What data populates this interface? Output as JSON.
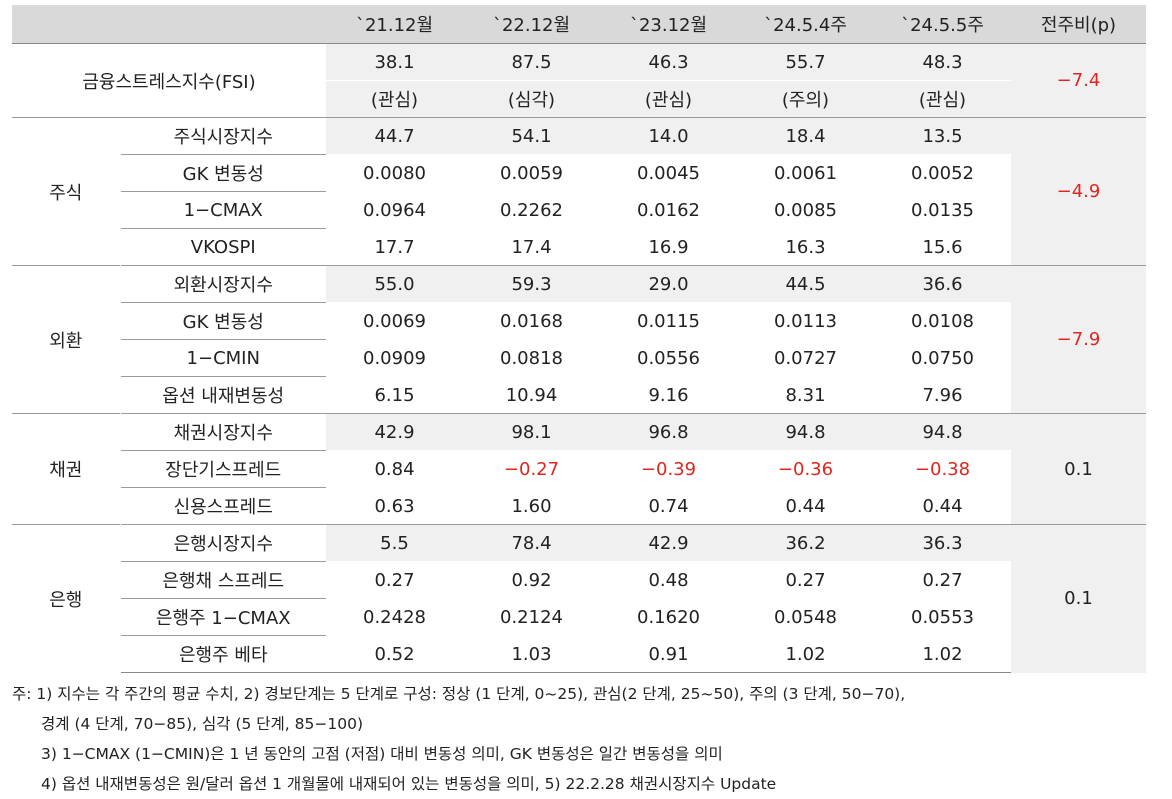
{
  "headers": [
    "",
    "",
    "`21.12월",
    "`22.12월",
    "`23.12월",
    "`24.5.4주",
    "`24.5.5주",
    "전주비(p)"
  ],
  "fsi": {
    "label": "금융스트레스지수(FSI)",
    "values": [
      "38.1",
      "87.5",
      "46.3",
      "55.7",
      "48.3"
    ],
    "levels": [
      "(관심)",
      "(심각)",
      "(관심)",
      "(주의)",
      "(관심)"
    ],
    "change": "−7.4"
  },
  "groups": [
    {
      "name": "주식",
      "change": "−4.9",
      "rows": [
        {
          "label": "주식시장지수",
          "values": [
            "44.7",
            "54.1",
            "14.0",
            "18.4",
            "13.5"
          ]
        },
        {
          "label": "GK 변동성",
          "values": [
            "0.0080",
            "0.0059",
            "0.0045",
            "0.0061",
            "0.0052"
          ]
        },
        {
          "label": "1−CMAX",
          "values": [
            "0.0964",
            "0.2262",
            "0.0162",
            "0.0085",
            "0.0135"
          ]
        },
        {
          "label": "VKOSPI",
          "values": [
            "17.7",
            "17.4",
            "16.9",
            "16.3",
            "15.6"
          ]
        }
      ]
    },
    {
      "name": "외환",
      "change": "−7.9",
      "rows": [
        {
          "label": "외환시장지수",
          "values": [
            "55.0",
            "59.3",
            "29.0",
            "44.5",
            "36.6"
          ]
        },
        {
          "label": "GK 변동성",
          "values": [
            "0.0069",
            "0.0168",
            "0.0115",
            "0.0113",
            "0.0108"
          ]
        },
        {
          "label": "1−CMIN",
          "values": [
            "0.0909",
            "0.0818",
            "0.0556",
            "0.0727",
            "0.0750"
          ]
        },
        {
          "label": "옵션 내재변동성",
          "values": [
            "6.15",
            "10.94",
            "9.16",
            "8.31",
            "7.96"
          ]
        }
      ]
    },
    {
      "name": "채권",
      "change": "0.1",
      "rows": [
        {
          "label": "채권시장지수",
          "values": [
            "42.9",
            "98.1",
            "96.8",
            "94.8",
            "94.8"
          ]
        },
        {
          "label": "장단기스프레드",
          "values": [
            "0.84",
            "−0.27",
            "−0.39",
            "−0.36",
            "−0.38"
          ]
        },
        {
          "label": "신용스프레드",
          "values": [
            "0.63",
            "1.60",
            "0.74",
            "0.44",
            "0.44"
          ]
        }
      ]
    },
    {
      "name": "은행",
      "change": "0.1",
      "rows": [
        {
          "label": "은행시장지수",
          "values": [
            "5.5",
            "78.4",
            "42.9",
            "36.2",
            "36.3"
          ]
        },
        {
          "label": "은행채 스프레드",
          "values": [
            "0.27",
            "0.92",
            "0.48",
            "0.27",
            "0.27"
          ]
        },
        {
          "label": "은행주 1−CMAX",
          "values": [
            "0.2428",
            "0.2124",
            "0.1620",
            "0.0548",
            "0.0553"
          ]
        },
        {
          "label": "은행주 베타",
          "values": [
            "0.52",
            "1.03",
            "0.91",
            "1.02",
            "1.02"
          ]
        }
      ]
    }
  ],
  "notes": [
    "주: 1) 지수는 각 주간의 평균 수치, 2) 경보단계는 5 단계로 구성: 정상 (1 단계, 0~25), 관심(2 단계, 25~50), 주의 (3 단계, 50−70),",
    "경계 (4 단계, 70−85), 심각 (5 단계, 85−100)",
    "3) 1−CMAX (1−CMIN)은 1 년 동안의 고점 (저점) 대비 변동성 의미, GK 변동성은 일간 변동성을 의미",
    "4) 옵션 내재변동성은 원/달러 옵션 1 개월물에 내재되어 있는 변동성을 의미, 5) 22.2.28 채권시장지수 Update"
  ],
  "colors": {
    "header_bg": "#d9d9d9",
    "shade_bg": "#f0f0f0",
    "negative": "#e0261e"
  }
}
